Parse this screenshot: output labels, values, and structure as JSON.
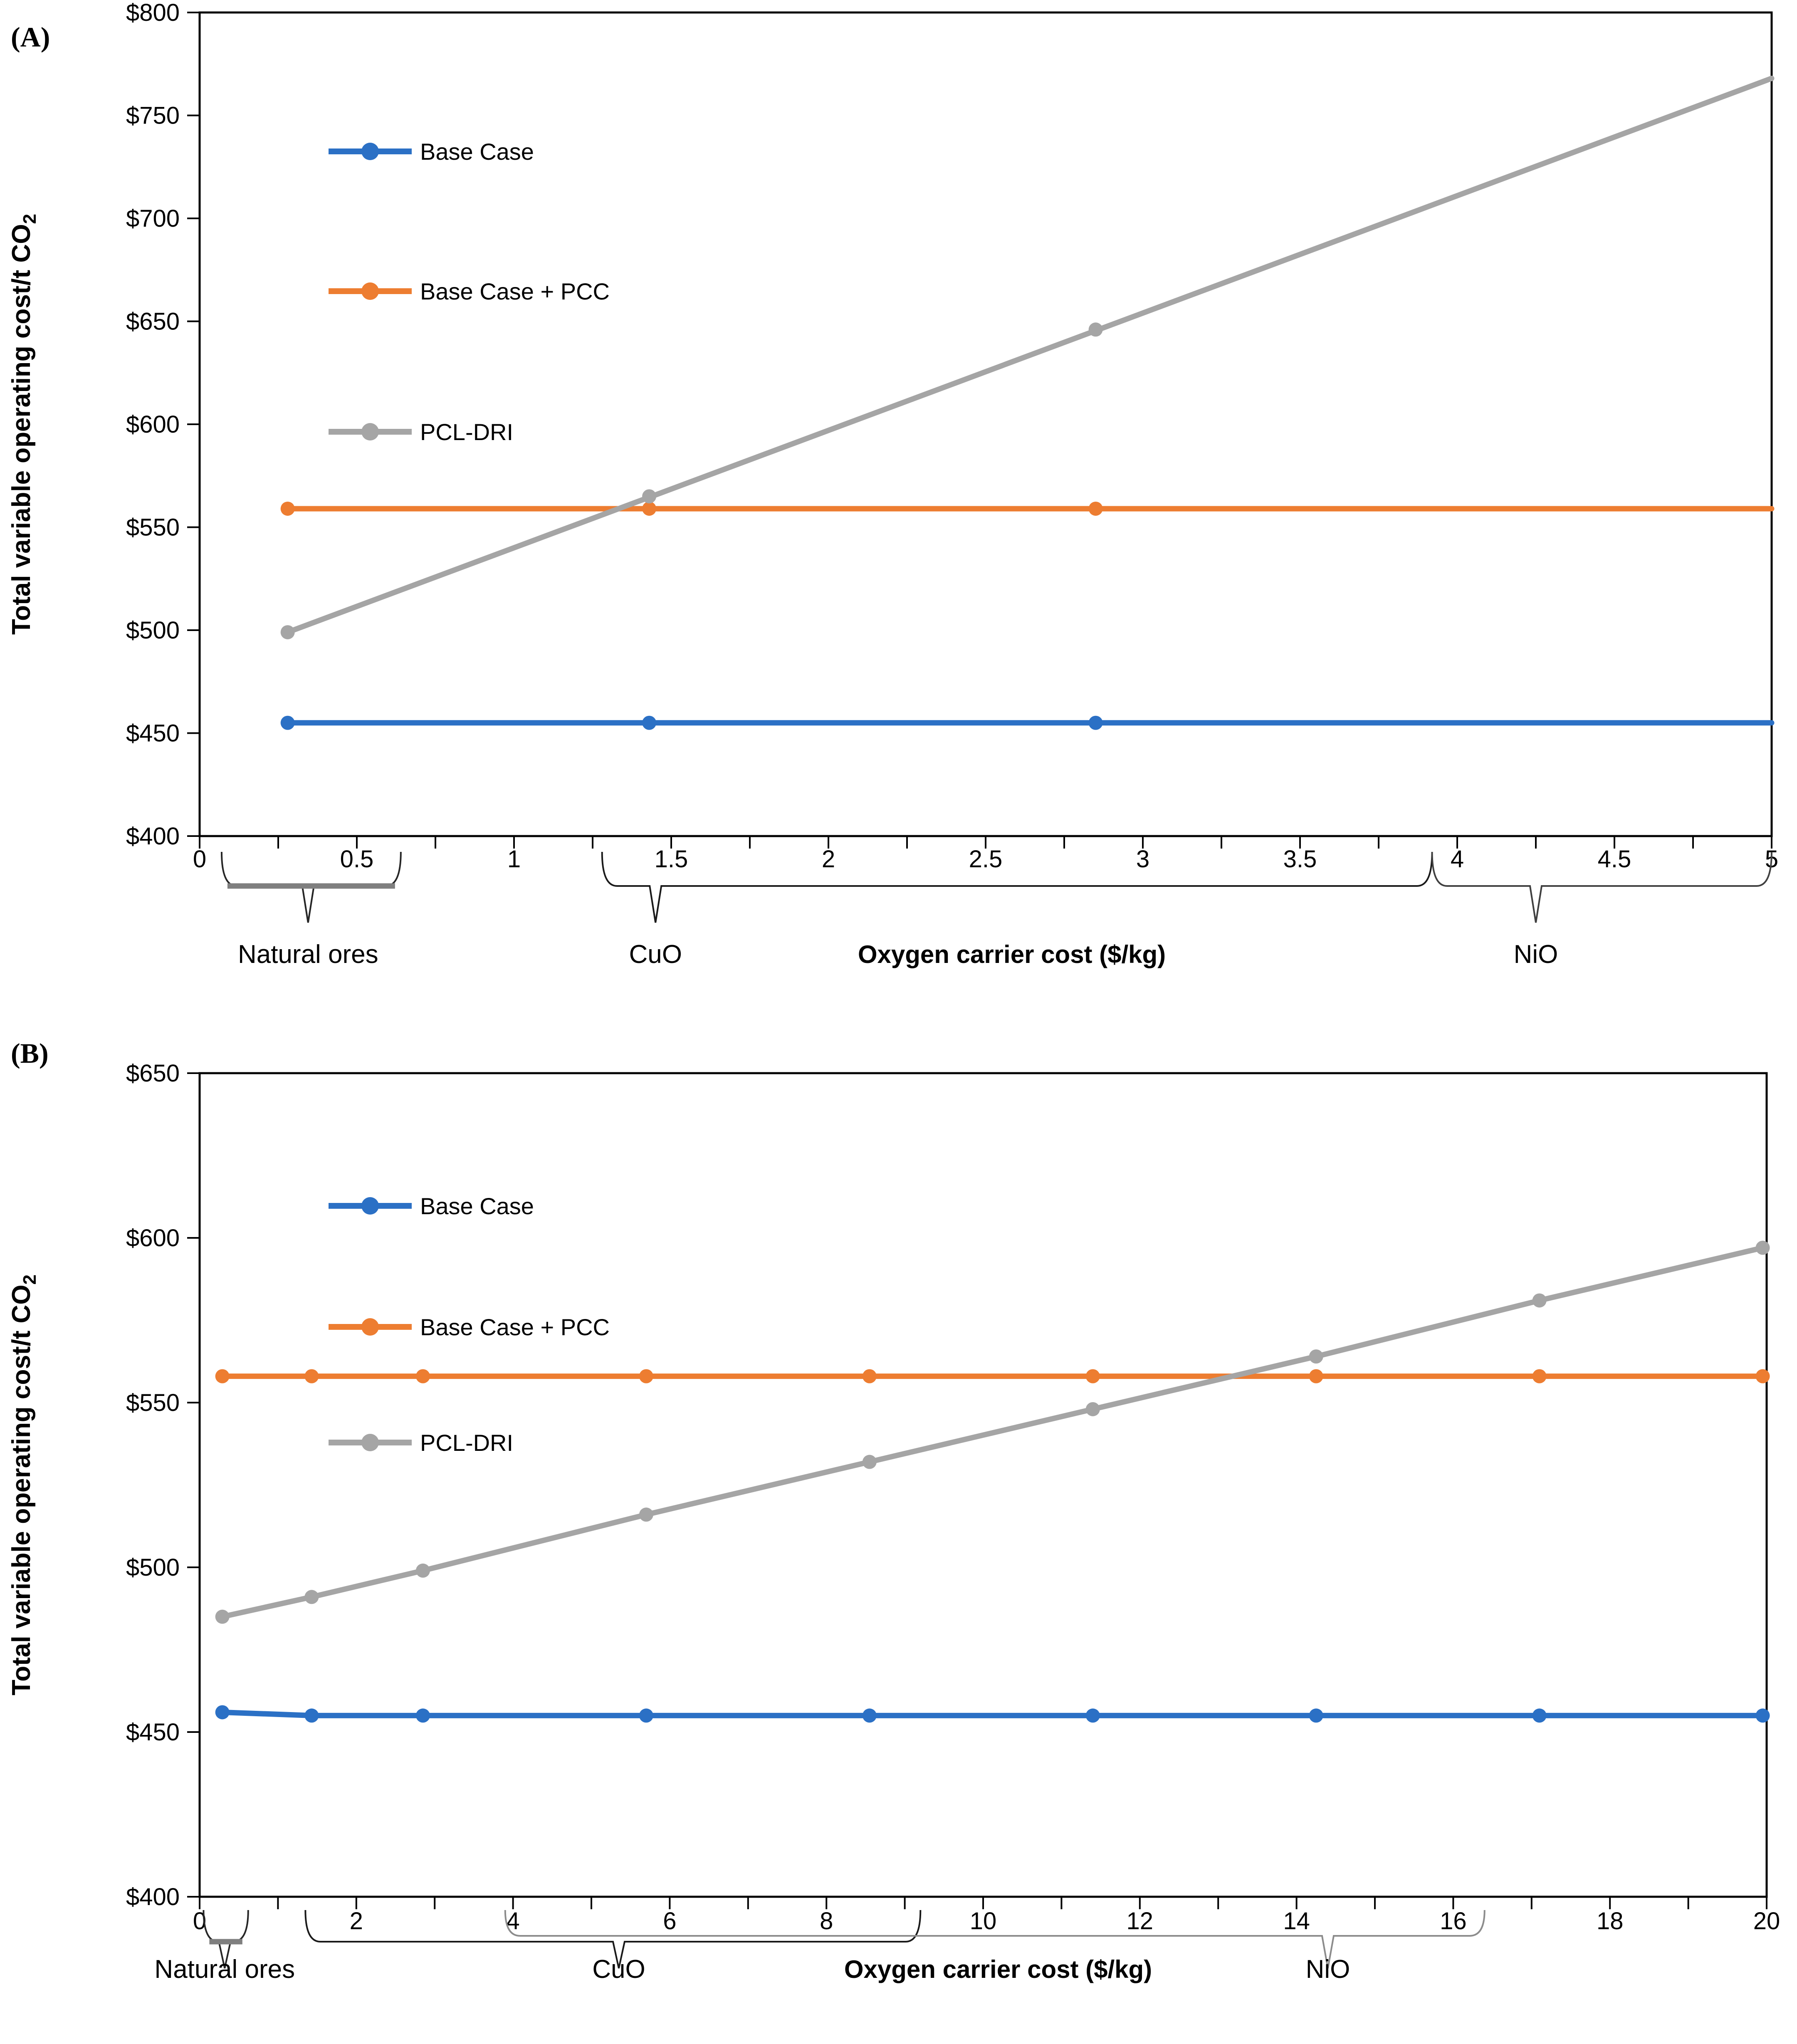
{
  "page": {
    "background": "#ffffff"
  },
  "colors": {
    "base_case": "#2B70C5",
    "base_case_pcc": "#ED7D31",
    "pcl_dri": "#A5A5A5",
    "axis": "#000000",
    "brace_gray": "#7F7F7F"
  },
  "chart_data": [
    {
      "panel_label": "(A)",
      "type": "line",
      "title": "",
      "xlabel": "Oxygen carrier cost ($/kg)",
      "ylabel_main": "Total variable operating cost/t CO",
      "ylabel_sub": "2",
      "xlim": [
        0,
        5
      ],
      "ylim": [
        400,
        800
      ],
      "x_label_step": 0.5,
      "x_tick_step": 0.25,
      "y_tick_step": 50,
      "y_tick_prefix": "$",
      "grid": false,
      "legend_position": "top-left-inside",
      "legend": [
        "Base Case",
        "Base Case + PCC",
        "PCL-DRI"
      ],
      "series": [
        {
          "name": "Base Case",
          "color": "#2B70C5",
          "points": [
            [
              0.28,
              455
            ],
            [
              1.43,
              455
            ],
            [
              2.85,
              455
            ]
          ],
          "line": [
            [
              0.28,
              455
            ],
            [
              5,
              455
            ]
          ]
        },
        {
          "name": "Base Case + PCC",
          "color": "#ED7D31",
          "points": [
            [
              0.28,
              559
            ],
            [
              1.43,
              559
            ],
            [
              2.85,
              559
            ]
          ],
          "line": [
            [
              0.28,
              559
            ],
            [
              5,
              559
            ]
          ]
        },
        {
          "name": "PCL-DRI",
          "color": "#A5A5A5",
          "points": [
            [
              0.28,
              499
            ],
            [
              1.43,
              565
            ],
            [
              2.85,
              646
            ]
          ],
          "line": [
            [
              0.28,
              499
            ],
            [
              5,
              768
            ]
          ]
        }
      ],
      "annotations": [
        {
          "kind": "brace",
          "label": "Natural ores",
          "x1": 0.07,
          "x2": 0.64,
          "pointer": 0.345,
          "color": "#262626",
          "overlay_color": "#7F7F7F",
          "thick": true,
          "lift": 0
        },
        {
          "kind": "brace",
          "label": "CuO",
          "x1": 1.28,
          "x2": 3.92,
          "pointer": 1.45,
          "color": "#1a1a1a",
          "thick": false,
          "lift": 0
        },
        {
          "kind": "brace",
          "label": "NiO",
          "x1": 3.92,
          "x2": 5.0,
          "pointer": 4.25,
          "color": "#404040",
          "thick": false,
          "lift": 0
        }
      ]
    },
    {
      "panel_label": "(B)",
      "type": "line",
      "title": "",
      "xlabel": "Oxygen carrier cost ($/kg)",
      "ylabel_main": "Total variable operating cost/t CO",
      "ylabel_sub": "2",
      "xlim": [
        0,
        20
      ],
      "ylim": [
        400,
        650
      ],
      "x_label_step": 2,
      "x_tick_step": 1,
      "y_tick_step": 50,
      "y_tick_prefix": "$",
      "grid": false,
      "legend_position": "top-left-inside",
      "legend": [
        "Base Case",
        "Base Case + PCC",
        "PCL-DRI"
      ],
      "series": [
        {
          "name": "Base Case",
          "color": "#2B70C5",
          "points": [
            [
              0.29,
              456
            ],
            [
              1.43,
              455
            ],
            [
              2.85,
              455
            ],
            [
              5.7,
              455
            ],
            [
              8.55,
              455
            ],
            [
              11.4,
              455
            ],
            [
              14.25,
              455
            ],
            [
              17.1,
              455
            ],
            [
              19.95,
              455
            ]
          ],
          "line": [
            [
              0.29,
              456
            ],
            [
              1.43,
              455
            ],
            [
              2.85,
              455
            ],
            [
              5.7,
              455
            ],
            [
              8.55,
              455
            ],
            [
              11.4,
              455
            ],
            [
              14.25,
              455
            ],
            [
              17.1,
              455
            ],
            [
              19.95,
              455
            ],
            [
              20,
              455
            ]
          ]
        },
        {
          "name": "Base Case + PCC",
          "color": "#ED7D31",
          "points": [
            [
              0.29,
              558
            ],
            [
              1.43,
              558
            ],
            [
              2.85,
              558
            ],
            [
              5.7,
              558
            ],
            [
              8.55,
              558
            ],
            [
              11.4,
              558
            ],
            [
              14.25,
              558
            ],
            [
              17.1,
              558
            ],
            [
              19.95,
              558
            ]
          ],
          "line": [
            [
              0.29,
              558
            ],
            [
              19.95,
              558
            ],
            [
              20,
              558
            ]
          ]
        },
        {
          "name": "PCL-DRI",
          "color": "#A5A5A5",
          "points": [
            [
              0.29,
              485
            ],
            [
              1.43,
              491
            ],
            [
              2.85,
              499
            ],
            [
              5.7,
              516
            ],
            [
              8.55,
              532
            ],
            [
              11.4,
              548
            ],
            [
              14.25,
              564
            ],
            [
              17.1,
              581
            ],
            [
              19.95,
              597
            ]
          ],
          "line": [
            [
              0.29,
              485
            ],
            [
              1.43,
              491
            ],
            [
              2.85,
              499
            ],
            [
              5.7,
              516
            ],
            [
              8.55,
              532
            ],
            [
              11.4,
              548
            ],
            [
              14.25,
              564
            ],
            [
              17.1,
              581
            ],
            [
              19.95,
              597
            ],
            [
              20,
              597
            ]
          ]
        }
      ],
      "annotations": [
        {
          "kind": "brace",
          "label": "Natural ores",
          "x1": 0.05,
          "x2": 0.62,
          "pointer": 0.32,
          "color": "#262626",
          "overlay_color": "#7F7F7F",
          "thick": true,
          "lift": 0
        },
        {
          "kind": "brace",
          "label": "CuO",
          "x1": 1.35,
          "x2": 9.2,
          "pointer": 5.35,
          "color": "#1a1a1a",
          "thick": false,
          "lift": 0
        },
        {
          "kind": "brace",
          "label": "NiO",
          "x1": 3.9,
          "x2": 16.4,
          "pointer": 14.4,
          "color": "#8C8C8C",
          "thick": false,
          "lift": 14
        }
      ]
    }
  ]
}
